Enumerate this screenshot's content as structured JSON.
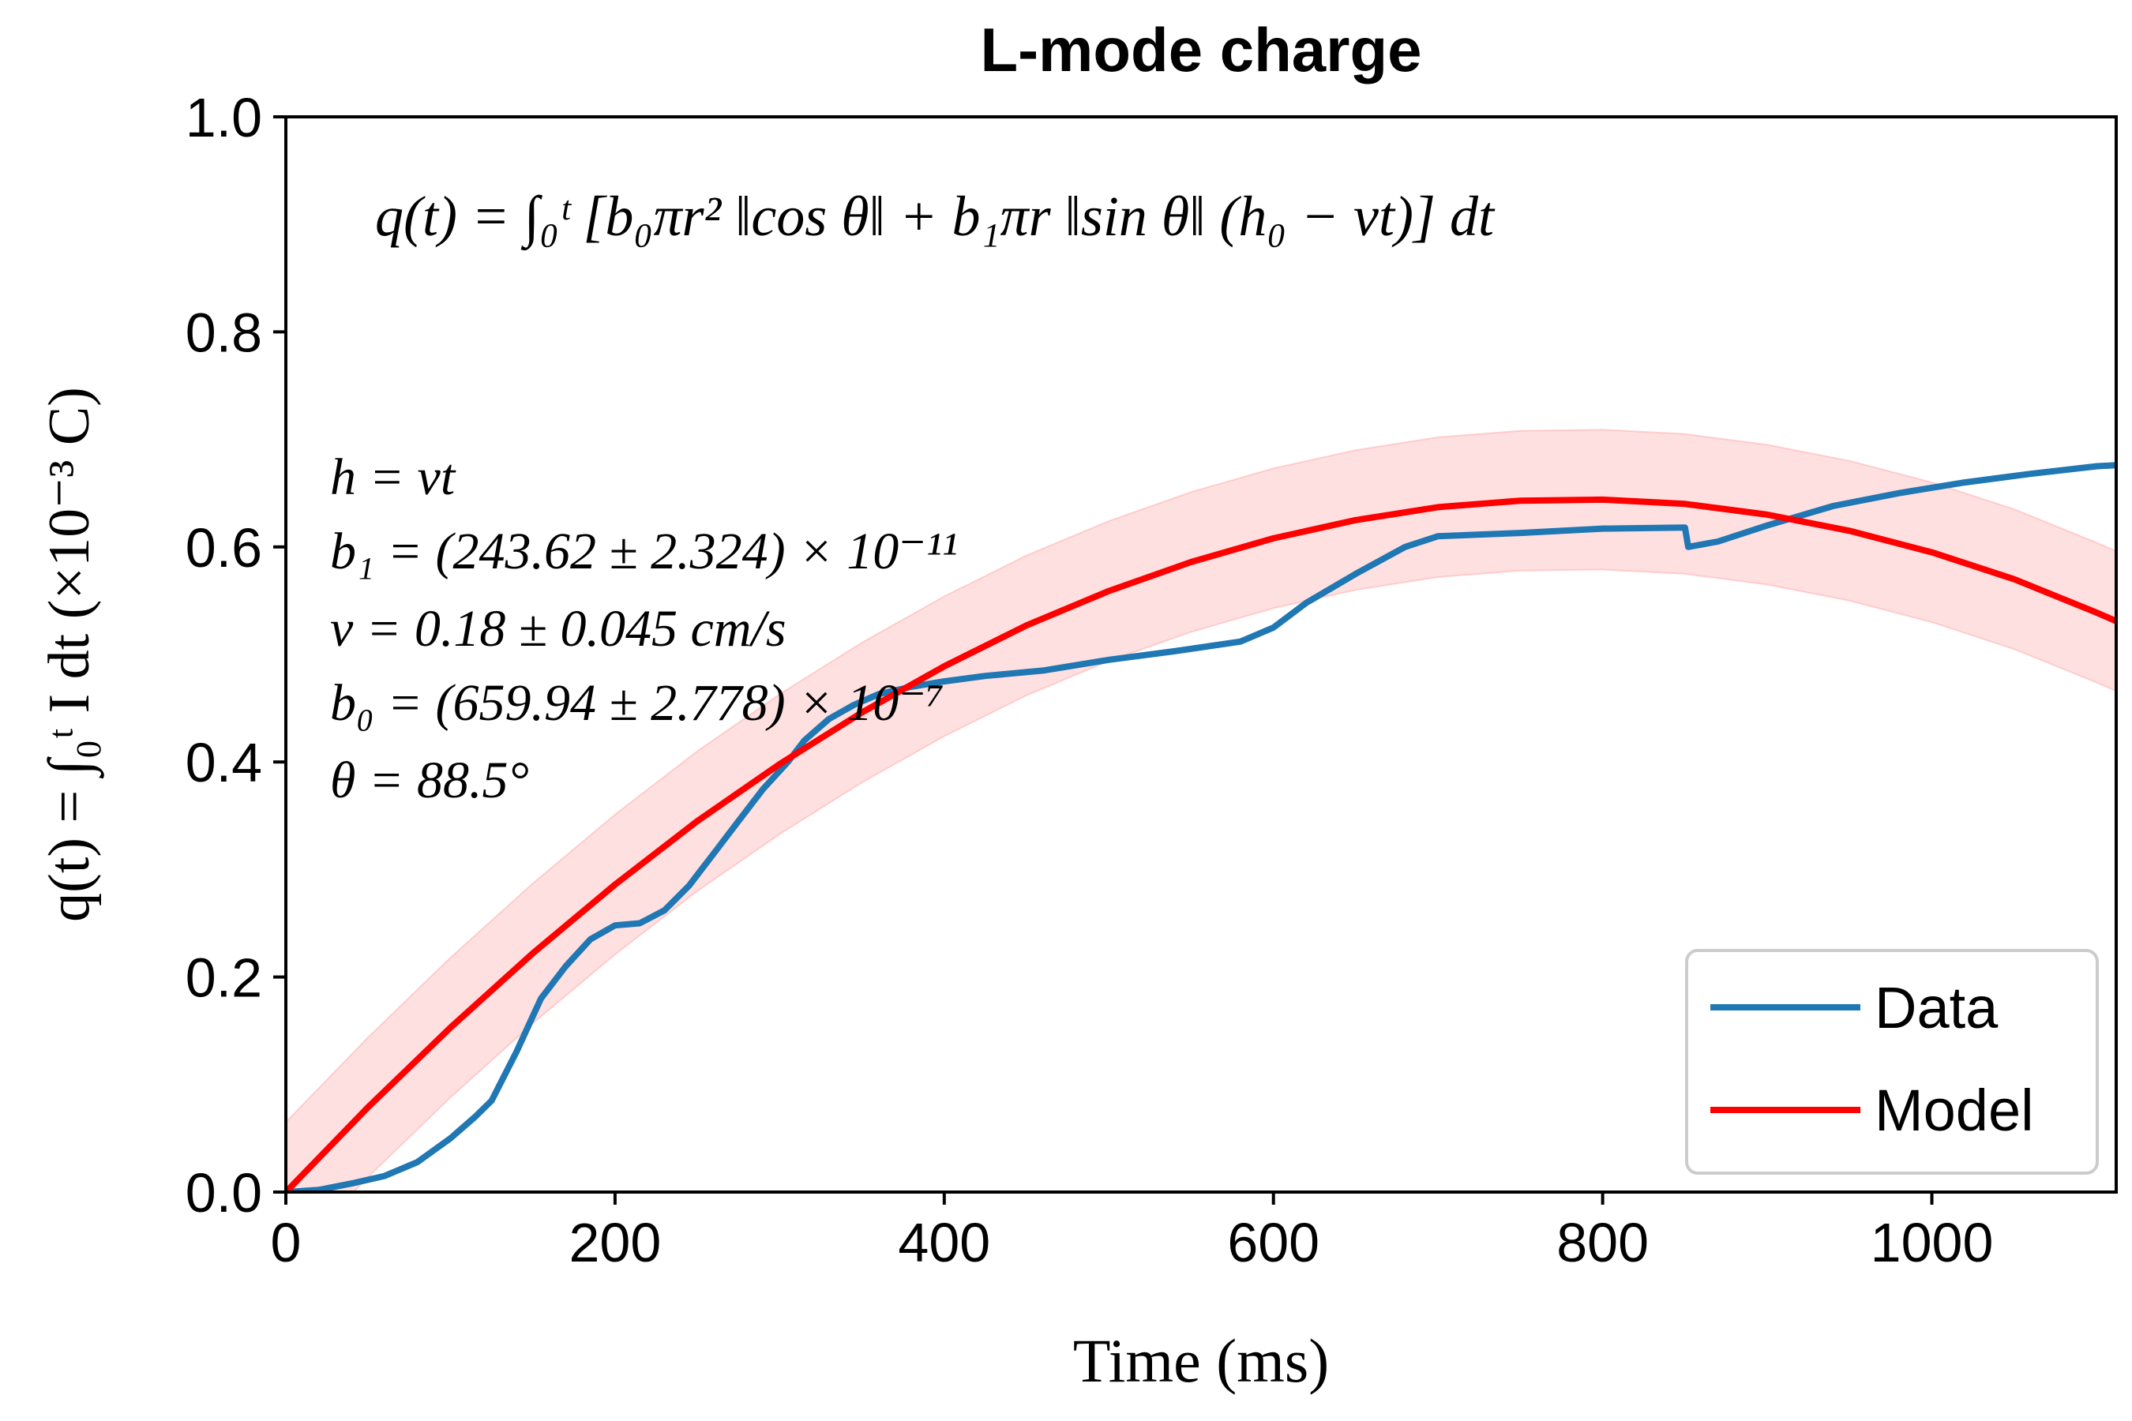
{
  "chart_data": {
    "type": "line",
    "title": "L-mode charge",
    "xlabel": "Time (ms)",
    "ylabel": "q(t) = ∫₀ᵗ I dt (×10⁻³ C)",
    "xlim": [
      0,
      1112
    ],
    "ylim": [
      0,
      1.0
    ],
    "xticks": [
      0,
      200,
      400,
      600,
      800,
      1000
    ],
    "xtick_labels": [
      "0",
      "200",
      "400",
      "600",
      "800",
      "1000"
    ],
    "yticks": [
      0.0,
      0.2,
      0.4,
      0.6,
      0.8,
      1.0
    ],
    "ytick_labels": [
      "0.0",
      "0.2",
      "0.4",
      "0.6",
      "0.8",
      "1.0"
    ],
    "grid": false,
    "legend_position": "bottom-right",
    "formula": "q(t) = ∫₀ᵗ [b₀πr² ‖cos θ‖ + b₁πr ‖sin θ‖ (h₀ − νt)] dt",
    "annotations": [
      "h = νt",
      "b₁ = (243.62 ± 2.324) × 10⁻¹¹",
      "ν = 0.18 ± 0.045 cm/s",
      "b₀ = (659.94 ± 2.778) × 10⁻⁷",
      "θ = 88.5°"
    ],
    "series": [
      {
        "name": "Data",
        "color": "#1f77b4",
        "x": [
          0,
          20,
          40,
          60,
          80,
          100,
          115,
          125,
          140,
          155,
          170,
          185,
          200,
          215,
          230,
          245,
          260,
          275,
          290,
          305,
          315,
          330,
          345,
          360,
          380,
          400,
          425,
          460,
          500,
          540,
          580,
          600,
          620,
          650,
          680,
          700,
          750,
          800,
          850,
          852,
          870,
          900,
          940,
          980,
          1020,
          1060,
          1100,
          1112
        ],
        "y": [
          0.0,
          0.002,
          0.008,
          0.015,
          0.028,
          0.05,
          0.07,
          0.085,
          0.13,
          0.18,
          0.21,
          0.235,
          0.248,
          0.25,
          0.262,
          0.285,
          0.315,
          0.345,
          0.375,
          0.4,
          0.42,
          0.44,
          0.453,
          0.463,
          0.47,
          0.475,
          0.48,
          0.485,
          0.495,
          0.503,
          0.512,
          0.525,
          0.548,
          0.575,
          0.6,
          0.61,
          0.613,
          0.617,
          0.618,
          0.6,
          0.605,
          0.62,
          0.638,
          0.65,
          0.66,
          0.668,
          0.675,
          0.676
        ]
      },
      {
        "name": "Model",
        "color": "#ff0000",
        "band_halfwidth": 0.065,
        "band_color": "#ffcccc",
        "x": [
          0,
          50,
          100,
          150,
          200,
          250,
          300,
          350,
          400,
          450,
          500,
          550,
          600,
          650,
          700,
          750,
          800,
          850,
          900,
          950,
          1000,
          1050,
          1100,
          1112
        ],
        "y": [
          0.0,
          0.079,
          0.153,
          0.222,
          0.286,
          0.345,
          0.398,
          0.446,
          0.489,
          0.527,
          0.559,
          0.586,
          0.608,
          0.625,
          0.637,
          0.643,
          0.644,
          0.64,
          0.63,
          0.615,
          0.595,
          0.57,
          0.539,
          0.531
        ]
      }
    ]
  }
}
